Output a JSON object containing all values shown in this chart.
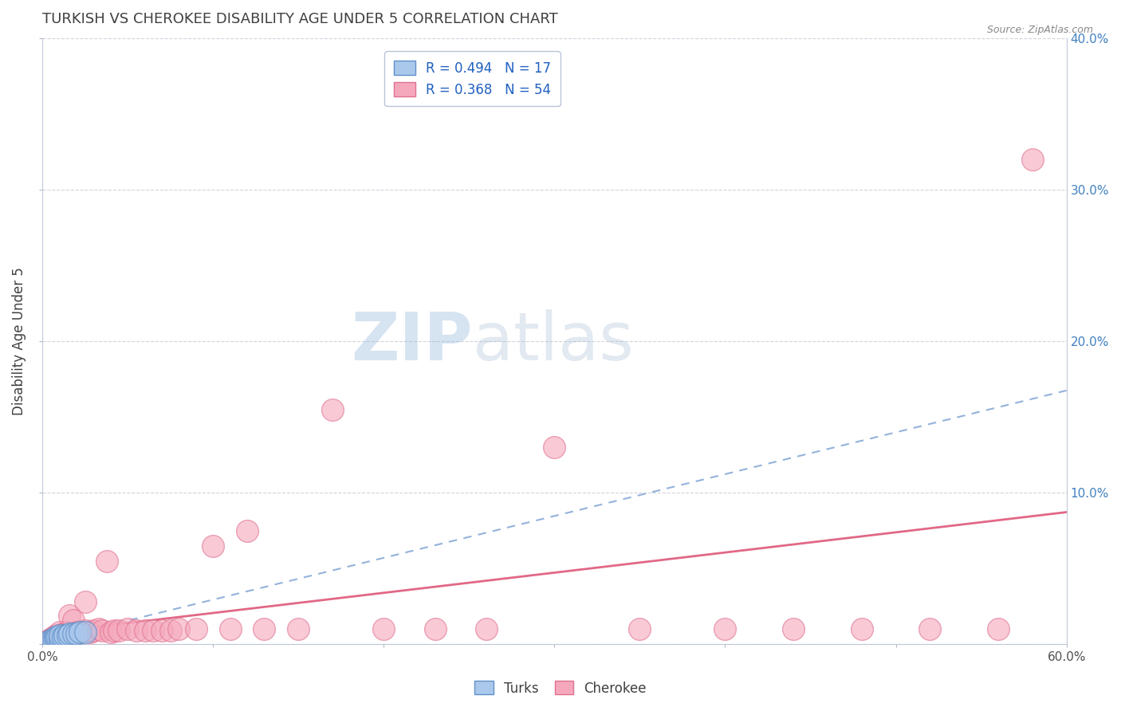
{
  "title": "TURKISH VS CHEROKEE DISABILITY AGE UNDER 5 CORRELATION CHART",
  "source": "Source: ZipAtlas.com",
  "ylabel": "Disability Age Under 5",
  "xlim": [
    0.0,
    0.6
  ],
  "ylim": [
    0.0,
    0.4
  ],
  "xticks": [
    0.0,
    0.1,
    0.2,
    0.3,
    0.4,
    0.5,
    0.6
  ],
  "yticks": [
    0.0,
    0.1,
    0.2,
    0.3,
    0.4
  ],
  "xticklabels": [
    "0.0%",
    "",
    "",
    "",
    "",
    "",
    "60.0%"
  ],
  "yticklabels": [
    "",
    "",
    "",
    "",
    ""
  ],
  "right_yticklabels": [
    "",
    "10.0%",
    "20.0%",
    "30.0%",
    "40.0%"
  ],
  "turks_R": 0.494,
  "turks_N": 17,
  "cherokee_R": 0.368,
  "cherokee_N": 54,
  "turks_color": "#aac8ec",
  "cherokee_color": "#f5a8bc",
  "turks_edge_color": "#6090c8",
  "cherokee_edge_color": "#e07090",
  "turks_line_color": "#88aad8",
  "cherokee_line_color": "#e06080",
  "title_color": "#404040",
  "right_tick_color": "#4080c0",
  "watermark_zip": "ZIP",
  "watermark_atlas": "atlas",
  "turks_x": [
    0.003,
    0.005,
    0.006,
    0.007,
    0.008,
    0.008,
    0.009,
    0.01,
    0.01,
    0.012,
    0.013,
    0.015,
    0.016,
    0.018,
    0.02,
    0.022,
    0.025
  ],
  "turks_y": [
    0.002,
    0.003,
    0.003,
    0.003,
    0.004,
    0.005,
    0.005,
    0.004,
    0.006,
    0.005,
    0.006,
    0.006,
    0.007,
    0.007,
    0.007,
    0.008,
    0.008
  ],
  "cherokee_x": [
    0.002,
    0.004,
    0.005,
    0.006,
    0.007,
    0.008,
    0.008,
    0.009,
    0.01,
    0.01,
    0.011,
    0.012,
    0.013,
    0.014,
    0.015,
    0.016,
    0.018,
    0.02,
    0.022,
    0.025,
    0.025,
    0.028,
    0.03,
    0.033,
    0.035,
    0.038,
    0.04,
    0.042,
    0.045,
    0.05,
    0.055,
    0.06,
    0.065,
    0.07,
    0.075,
    0.08,
    0.09,
    0.1,
    0.11,
    0.12,
    0.13,
    0.15,
    0.17,
    0.2,
    0.23,
    0.26,
    0.3,
    0.35,
    0.4,
    0.44,
    0.48,
    0.52,
    0.56,
    0.58
  ],
  "cherokee_y": [
    0.002,
    0.003,
    0.004,
    0.003,
    0.005,
    0.004,
    0.006,
    0.005,
    0.005,
    0.008,
    0.006,
    0.007,
    0.006,
    0.008,
    0.007,
    0.019,
    0.016,
    0.008,
    0.008,
    0.009,
    0.028,
    0.008,
    0.009,
    0.01,
    0.009,
    0.055,
    0.008,
    0.009,
    0.009,
    0.01,
    0.009,
    0.009,
    0.009,
    0.009,
    0.009,
    0.01,
    0.01,
    0.065,
    0.01,
    0.075,
    0.01,
    0.01,
    0.155,
    0.01,
    0.01,
    0.01,
    0.13,
    0.01,
    0.01,
    0.01,
    0.01,
    0.01,
    0.01,
    0.32
  ]
}
